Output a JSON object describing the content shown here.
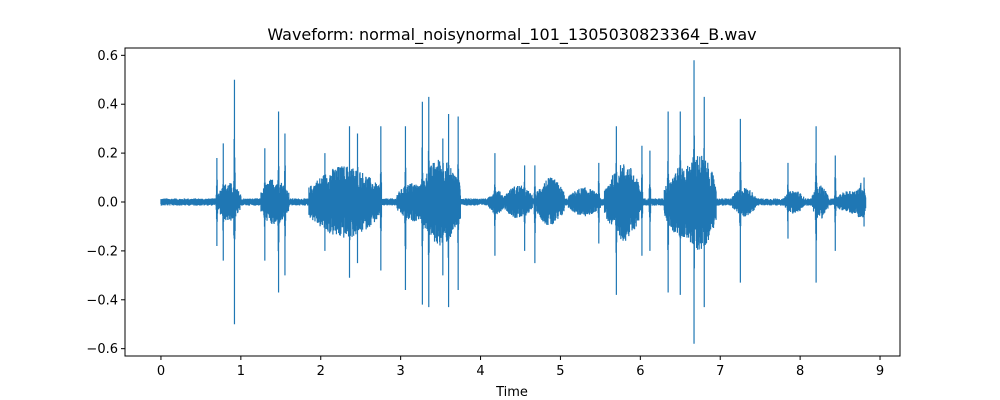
{
  "chart_data": {
    "type": "line",
    "title": "Waveform: normal_noisynormal_101_1305030823364_B.wav",
    "xlabel": "Time",
    "ylabel": "",
    "xlim": [
      -0.45,
      9.25
    ],
    "ylim": [
      -0.63,
      0.63
    ],
    "x_ticks": [
      0,
      1,
      2,
      3,
      4,
      5,
      6,
      7,
      8,
      9
    ],
    "y_ticks": [
      -0.6,
      -0.4,
      -0.2,
      0.0,
      0.2,
      0.4,
      0.6
    ],
    "x_tick_labels": [
      "0",
      "1",
      "2",
      "3",
      "4",
      "5",
      "6",
      "7",
      "8",
      "9"
    ],
    "y_tick_labels": [
      "−0.6",
      "−0.4",
      "−0.2",
      "0.0",
      "0.2",
      "0.4",
      "0.6"
    ],
    "grid": false,
    "legend": "none",
    "series": [
      {
        "color": "#1f77b4",
        "duration": 8.82,
        "baseline_amplitude": 0.015,
        "bursts": [
          {
            "t": 0.7,
            "dur": 0.3,
            "amp": 0.08
          },
          {
            "t": 1.25,
            "dur": 0.35,
            "amp": 0.1
          },
          {
            "t": 1.85,
            "dur": 0.9,
            "amp": 0.15
          },
          {
            "t": 2.95,
            "dur": 0.4,
            "amp": 0.08
          },
          {
            "t": 3.25,
            "dur": 0.5,
            "amp": 0.18
          },
          {
            "t": 4.1,
            "dur": 0.2,
            "amp": 0.05
          },
          {
            "t": 4.3,
            "dur": 0.35,
            "amp": 0.07
          },
          {
            "t": 4.7,
            "dur": 0.35,
            "amp": 0.1
          },
          {
            "t": 5.1,
            "dur": 0.4,
            "amp": 0.06
          },
          {
            "t": 5.55,
            "dur": 0.3,
            "amp": 0.12
          },
          {
            "t": 5.6,
            "dur": 0.4,
            "amp": 0.16
          },
          {
            "t": 6.3,
            "dur": 0.45,
            "amp": 0.15
          },
          {
            "t": 6.5,
            "dur": 0.45,
            "amp": 0.2
          },
          {
            "t": 7.15,
            "dur": 0.3,
            "amp": 0.06
          },
          {
            "t": 7.8,
            "dur": 0.25,
            "amp": 0.05
          },
          {
            "t": 8.15,
            "dur": 0.2,
            "amp": 0.07
          },
          {
            "t": 8.45,
            "dur": 0.4,
            "amp": 0.05
          },
          {
            "t": 8.7,
            "dur": 0.12,
            "amp": 0.08
          }
        ],
        "spikes": [
          {
            "t": 0.7,
            "max": 0.18,
            "min": -0.18
          },
          {
            "t": 0.78,
            "max": 0.24,
            "min": -0.24
          },
          {
            "t": 0.92,
            "max": 0.5,
            "min": -0.5
          },
          {
            "t": 1.3,
            "max": 0.22,
            "min": -0.24
          },
          {
            "t": 1.47,
            "max": 0.37,
            "min": -0.37
          },
          {
            "t": 1.55,
            "max": 0.28,
            "min": -0.3
          },
          {
            "t": 2.05,
            "max": 0.2,
            "min": -0.2
          },
          {
            "t": 2.36,
            "max": 0.31,
            "min": -0.31
          },
          {
            "t": 2.46,
            "max": 0.28,
            "min": -0.25
          },
          {
            "t": 2.75,
            "max": 0.31,
            "min": -0.28
          },
          {
            "t": 3.06,
            "max": 0.31,
            "min": -0.36
          },
          {
            "t": 3.27,
            "max": 0.41,
            "min": -0.42
          },
          {
            "t": 3.35,
            "max": 0.43,
            "min": -0.43
          },
          {
            "t": 3.53,
            "max": 0.26,
            "min": -0.3
          },
          {
            "t": 3.6,
            "max": 0.36,
            "min": -0.43
          },
          {
            "t": 3.72,
            "max": 0.35,
            "min": -0.36
          },
          {
            "t": 4.18,
            "max": 0.2,
            "min": -0.22
          },
          {
            "t": 4.55,
            "max": 0.15,
            "min": -0.2
          },
          {
            "t": 4.68,
            "max": 0.15,
            "min": -0.25
          },
          {
            "t": 5.48,
            "max": 0.16,
            "min": -0.17
          },
          {
            "t": 5.7,
            "max": 0.31,
            "min": -0.38
          },
          {
            "t": 6.02,
            "max": 0.23,
            "min": -0.22
          },
          {
            "t": 6.12,
            "max": 0.21,
            "min": -0.2
          },
          {
            "t": 6.35,
            "max": 0.37,
            "min": -0.37
          },
          {
            "t": 6.5,
            "max": 0.37,
            "min": -0.38
          },
          {
            "t": 6.67,
            "max": 0.58,
            "min": -0.58
          },
          {
            "t": 6.8,
            "max": 0.43,
            "min": -0.43
          },
          {
            "t": 7.25,
            "max": 0.34,
            "min": -0.33
          },
          {
            "t": 7.85,
            "max": 0.16,
            "min": -0.15
          },
          {
            "t": 8.2,
            "max": 0.31,
            "min": -0.33
          },
          {
            "t": 8.44,
            "max": 0.19,
            "min": -0.2
          },
          {
            "t": 8.8,
            "max": 0.1,
            "min": -0.1
          }
        ]
      }
    ]
  }
}
